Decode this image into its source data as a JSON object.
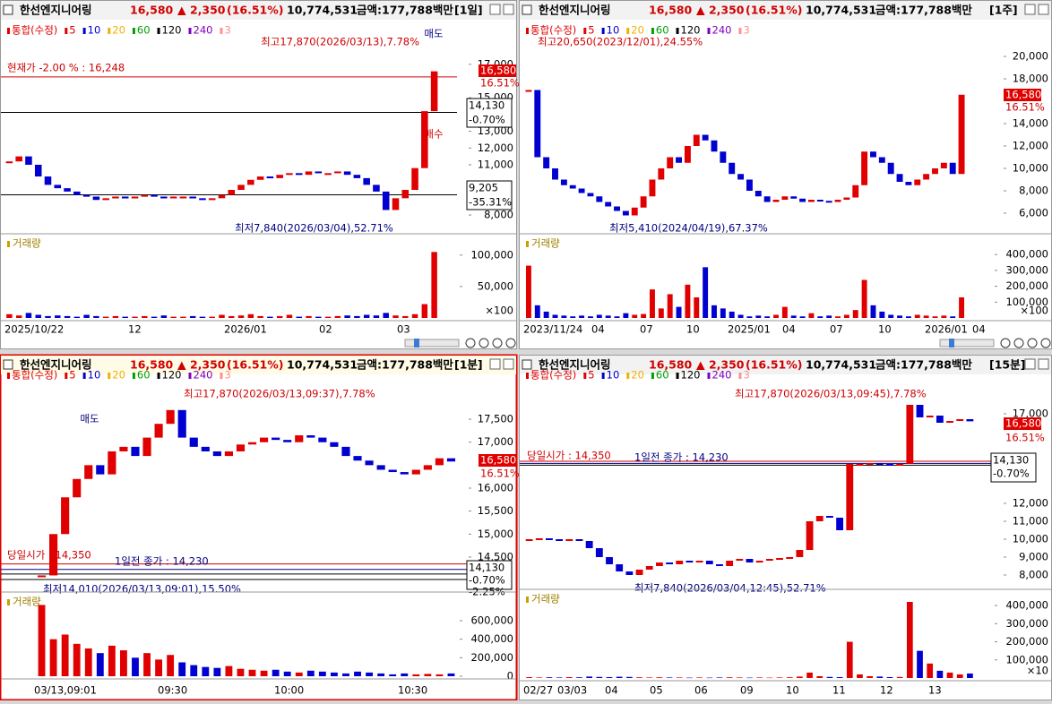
{
  "panels": [
    {
      "header": {
        "name": "한선엔지니어링",
        "price": "16,580",
        "change": "▲ 2,350",
        "rate": "(16.51%)",
        "volume": "10,774,531",
        "amount": "금액:177,788백만",
        "period": "[1일]"
      },
      "legend": [
        {
          "text": "통합(수정)",
          "color": "#e00000"
        },
        {
          "text": "5",
          "color": "#e00000"
        },
        {
          "text": "10",
          "color": "#0000d0"
        },
        {
          "text": "20",
          "color": "#f0b000"
        },
        {
          "text": "60",
          "color": "#00a000"
        },
        {
          "text": "120",
          "color": "#000000"
        },
        {
          "text": "240",
          "color": "#8000c0"
        },
        {
          "text": "3",
          "color": "#ff9090"
        }
      ],
      "ylim": [
        7200,
        18700
      ],
      "yticks": [
        {
          "value": 8000,
          "label": "8,000"
        },
        {
          "value": 11000,
          "label": "11,000"
        },
        {
          "value": 12000,
          "label": "12,000"
        },
        {
          "value": 13000,
          "label": "13,000"
        },
        {
          "value": 15000,
          "label": "15,000"
        },
        {
          "value": 17000,
          "label": "17,000"
        }
      ],
      "lines": [
        {
          "value": 16248,
          "color": "#d00000"
        },
        {
          "value": 14130,
          "color": "#000000"
        },
        {
          "value": 9205,
          "color": "#000000"
        }
      ],
      "closes": [
        11200,
        11500,
        11000,
        10300,
        9800,
        9600,
        9400,
        9200,
        9100,
        8900,
        9000,
        9100,
        9000,
        9100,
        9200,
        9100,
        9000,
        9100,
        9100,
        9000,
        8900,
        9000,
        9200,
        9500,
        9800,
        10100,
        10300,
        10200,
        10400,
        10500,
        10400,
        10600,
        10500,
        10500,
        10600,
        10400,
        10200,
        9800,
        9400,
        8300,
        9000,
        9500,
        10800,
        14200,
        16580
      ],
      "tags": [
        "16,580",
        "16.51%",
        "14,130",
        "-0.70%",
        "9,205",
        "-35.31%"
      ],
      "annotations": [
        "최고17,870(2026/03/13),7.78%",
        "현재가 -2.00 % : 16,248",
        "최저7,840(2026/03/04),52.71%",
        "매도",
        "매수"
      ],
      "volume": {
        "label": "거래량",
        "unit": "×100",
        "ylim": [
          0,
          114000
        ],
        "yticks": [
          {
            "value": 50000,
            "label": "50,000"
          },
          {
            "value": 100000,
            "label": "100,000"
          }
        ],
        "values": [
          6000,
          4000,
          8000,
          5000,
          3000,
          4000,
          3000,
          2000,
          5000,
          3000,
          2000,
          3000,
          2000,
          2000,
          3000,
          2000,
          4000,
          2000,
          2000,
          3000,
          2000,
          2000,
          5000,
          3000,
          4000,
          6000,
          3000,
          2000,
          3000,
          5000,
          2000,
          3000,
          2000,
          2000,
          3000,
          4000,
          3000,
          5000,
          4000,
          8000,
          4000,
          3000,
          6000,
          22000,
          105000
        ]
      },
      "x_labels": [
        "2025/10/22",
        "12",
        "2026/01",
        "02",
        "03"
      ]
    },
    {
      "header": {
        "name": "한선엔지니어링",
        "price": "16,580",
        "change": "▲ 2,350",
        "rate": "(16.51%)",
        "volume": "10,774,531",
        "amount": "금액:177,788백만",
        "period": "[1주]"
      },
      "legend": [
        {
          "text": "통합(수정)",
          "color": "#e00000"
        },
        {
          "text": "5",
          "color": "#e00000"
        },
        {
          "text": "10",
          "color": "#0000d0"
        },
        {
          "text": "20",
          "color": "#f0b000"
        },
        {
          "text": "60",
          "color": "#00a000"
        },
        {
          "text": "120",
          "color": "#000000"
        },
        {
          "text": "240",
          "color": "#8000c0"
        },
        {
          "text": "3",
          "color": "#ff9090"
        }
      ],
      "ylim": [
        4640,
        21840
      ],
      "yticks": [
        {
          "value": 6000,
          "label": "6,000"
        },
        {
          "value": 8000,
          "label": "8,000"
        },
        {
          "value": 10000,
          "label": "10,000"
        },
        {
          "value": 12000,
          "label": "12,000"
        },
        {
          "value": 14000,
          "label": "14,000"
        },
        {
          "value": 18000,
          "label": "18,000"
        },
        {
          "value": 20000,
          "label": "20,000"
        }
      ],
      "lines": [],
      "closes": [
        17000,
        11000,
        10000,
        9000,
        8500,
        8200,
        7800,
        7500,
        7000,
        6600,
        6200,
        5800,
        6500,
        7500,
        9000,
        10000,
        11000,
        10500,
        12000,
        13000,
        12500,
        11500,
        10500,
        9500,
        9000,
        8000,
        7500,
        7000,
        7200,
        7500,
        7300,
        7000,
        7200,
        7100,
        7000,
        7200,
        7400,
        8500,
        11500,
        11000,
        10500,
        9500,
        8800,
        8500,
        9000,
        9500,
        10000,
        10500,
        9500,
        16580
      ],
      "tags": [
        "16,580",
        "16.51%"
      ],
      "annotations": [
        "최고20,650(2023/12/01),24.55%",
        "최저5,410(2024/04/19),67.37%"
      ],
      "volume": {
        "label": "거래량",
        "unit": "×100",
        "ylim": [
          0,
          452000
        ],
        "yticks": [
          {
            "value": 100000,
            "label": "100,000"
          },
          {
            "value": 200000,
            "label": "200,000"
          },
          {
            "value": 300000,
            "label": "300,000"
          },
          {
            "value": 400000,
            "label": "400,000"
          }
        ],
        "values": [
          330000,
          80000,
          40000,
          20000,
          15000,
          10000,
          15000,
          10000,
          20000,
          15000,
          10000,
          30000,
          20000,
          25000,
          180000,
          60000,
          150000,
          70000,
          210000,
          130000,
          320000,
          80000,
          60000,
          40000,
          20000,
          10000,
          15000,
          10000,
          20000,
          70000,
          15000,
          10000,
          30000,
          10000,
          15000,
          10000,
          20000,
          50000,
          240000,
          80000,
          40000,
          20000,
          15000,
          10000,
          20000,
          15000,
          10000,
          15000,
          10000,
          130000
        ]
      },
      "x_labels": [
        "2023/11/24",
        "04",
        "07",
        "10",
        "2025/01",
        "04",
        "07",
        "10",
        "2026/01",
        "04"
      ]
    },
    {
      "header": {
        "name": "한선엔지니어링",
        "price": "16,580",
        "change": "▲ 2,350",
        "rate": "(16.51%)",
        "volume": "10,774,531",
        "amount": "금액:177,788백만",
        "period": "[1분]"
      },
      "legend": [
        {
          "text": "통합(수정)",
          "color": "#e00000"
        },
        {
          "text": "5",
          "color": "#e00000"
        },
        {
          "text": "10",
          "color": "#0000d0"
        },
        {
          "text": "20",
          "color": "#f0b000"
        },
        {
          "text": "60",
          "color": "#00a000"
        },
        {
          "text": "120",
          "color": "#000000"
        },
        {
          "text": "240",
          "color": "#8000c0"
        },
        {
          "text": "3",
          "color": "#ff9090"
        }
      ],
      "ylim": [
        13855,
        18340
      ],
      "yticks": [
        {
          "value": 14500,
          "label": "14,500"
        },
        {
          "value": 15000,
          "label": "15,000"
        },
        {
          "value": 15500,
          "label": "15,500"
        },
        {
          "value": 16000,
          "label": "16,000"
        },
        {
          "value": 17000,
          "label": "17,000"
        },
        {
          "value": 17500,
          "label": "17,500"
        }
      ],
      "lines": [
        {
          "value": 14350,
          "color": "#d00000"
        },
        {
          "value": 14230,
          "color": "#000080"
        },
        {
          "value": 14130,
          "color": "#000000"
        },
        {
          "value": 14010,
          "color": "#000000"
        }
      ],
      "closes": [
        14100,
        15000,
        15800,
        16200,
        16500,
        16300,
        16800,
        16900,
        16700,
        17100,
        17400,
        17700,
        17100,
        16900,
        16800,
        16700,
        16800,
        16950,
        17000,
        17100,
        17050,
        17000,
        17150,
        17100,
        17000,
        16900,
        16700,
        16600,
        16500,
        16400,
        16350,
        16300,
        16400,
        16500,
        16650,
        16580
      ],
      "tags": [
        "16,580",
        "16.51%",
        "14,130",
        "-0.70%",
        "-2.25%"
      ],
      "annotations": [
        "최고17,870(2026/03/13,09:37),7.78%",
        "매도",
        "당일시가 : 14,350",
        "1일전 종가 : 14,230",
        "최저14,010(2026/03/13,09:01),15.50%"
      ],
      "volume": {
        "label": "거래량",
        "ylim": [
          0,
          774000
        ],
        "yticks": [
          0,
          {
            "value": 200000,
            "label": "200,000"
          },
          {
            "value": 400000,
            "label": "400,000"
          },
          {
            "value": 600000,
            "label": "600,000"
          }
        ],
        "values": [
          770000,
          400000,
          450000,
          350000,
          300000,
          250000,
          330000,
          280000,
          200000,
          250000,
          180000,
          230000,
          150000,
          120000,
          100000,
          90000,
          110000,
          80000,
          70000,
          60000,
          70000,
          50000,
          40000,
          60000,
          50000,
          40000,
          30000,
          50000,
          40000,
          30000,
          20000,
          30000,
          20000,
          25000,
          20000,
          30000
        ]
      },
      "x_labels": [
        "03/13,09:01",
        "09:30",
        "10:00",
        "10:30"
      ]
    },
    {
      "header": {
        "name": "한선엔지니어링",
        "price": "16,580",
        "change": "▲ 2,350",
        "rate": "(16.51%)",
        "volume": "10,774,531",
        "amount": "금액:177,788백만",
        "period": "[15분]"
      },
      "legend": [
        {
          "text": "통합(수정)",
          "color": "#e00000"
        },
        {
          "text": "5",
          "color": "#e00000"
        },
        {
          "text": "10",
          "color": "#0000d0"
        },
        {
          "text": "20",
          "color": "#f0b000"
        },
        {
          "text": "60",
          "color": "#00a000"
        },
        {
          "text": "120",
          "color": "#000000"
        },
        {
          "text": "240",
          "color": "#8000c0"
        },
        {
          "text": "3",
          "color": "#ff9090"
        }
      ],
      "ylim": [
        7350,
        18850
      ],
      "yticks": [
        {
          "value": 8000,
          "label": "8,000"
        },
        {
          "value": 9000,
          "label": "9,000"
        },
        {
          "value": 10000,
          "label": "10,000"
        },
        {
          "value": 11000,
          "label": "11,000"
        },
        {
          "value": 12000,
          "label": "12,000"
        },
        {
          "value": 17000,
          "label": "17,000"
        }
      ],
      "lines": [
        {
          "value": 14350,
          "color": "#d00000"
        },
        {
          "value": 14230,
          "color": "#000080"
        },
        {
          "value": 14130,
          "color": "#000000"
        }
      ],
      "closes": [
        10000,
        10050,
        10000,
        9950,
        10000,
        9900,
        9500,
        9000,
        8600,
        8200,
        8000,
        8300,
        8500,
        8700,
        8600,
        8800,
        8700,
        8800,
        8600,
        8500,
        8800,
        8900,
        8700,
        8800,
        8900,
        8950,
        9000,
        9400,
        11000,
        11300,
        11200,
        10500,
        14200,
        14200,
        14250,
        14200,
        14150,
        14200,
        17500,
        16800,
        16900,
        16500,
        16600,
        16700,
        16580
      ],
      "tags": [
        "16,580",
        "16.51%",
        "14,130",
        "-0.70%"
      ],
      "annotations": [
        "최고17,870(2026/03/13,09:45),7.78%",
        "당일시가 : 14,350",
        "1일전 종가 : 14,230",
        "최저7,840(2026/03/04,12:45),52.71%"
      ],
      "volume": {
        "label": "거래량",
        "unit": "×10",
        "ylim": [
          0,
          420000
        ],
        "yticks": [
          {
            "value": 100000,
            "label": "100,000"
          },
          {
            "value": 200000,
            "label": "200,000"
          },
          {
            "value": 300000,
            "label": "300,000"
          },
          {
            "value": 400000,
            "label": "400,000"
          }
        ],
        "values": [
          5000,
          3000,
          4000,
          3000,
          5000,
          4000,
          8000,
          6000,
          5000,
          7000,
          6000,
          4000,
          3000,
          4000,
          3000,
          3000,
          2000,
          3000,
          2000,
          3000,
          4000,
          3000,
          2000,
          3000,
          2000,
          3000,
          4000,
          8000,
          30000,
          10000,
          6000,
          5000,
          200000,
          20000,
          10000,
          8000,
          5000,
          6000,
          420000,
          150000,
          80000,
          40000,
          30000,
          20000,
          25000
        ]
      },
      "x_labels": [
        "02/27",
        "03/03",
        "04",
        "05",
        "06",
        "09",
        "10",
        "11",
        "12",
        "13"
      ]
    }
  ]
}
